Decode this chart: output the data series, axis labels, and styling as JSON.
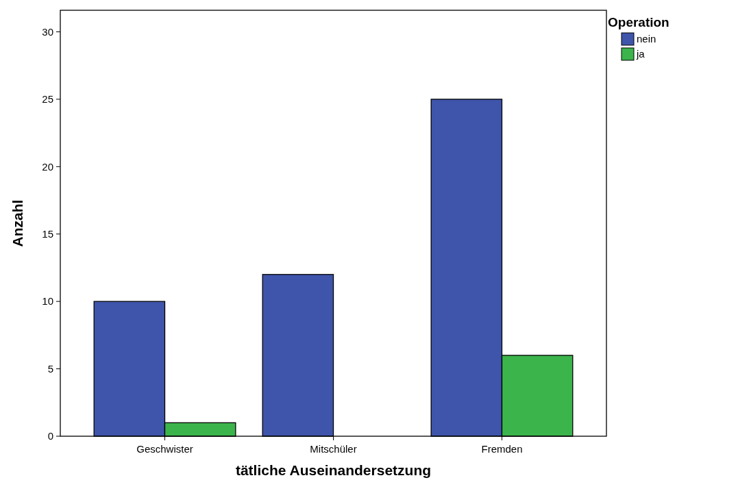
{
  "chart_data": {
    "type": "bar",
    "xlabel": "tätliche Auseinandersetzung",
    "ylabel": "Anzahl",
    "legend_title": "Operation",
    "categories": [
      "Geschwister",
      "Mitschüler",
      "Fremden"
    ],
    "series": [
      {
        "name": "nein",
        "color": "#3f55ab",
        "values": [
          10,
          12,
          25
        ]
      },
      {
        "name": "ja",
        "color": "#3bb44b",
        "values": [
          1,
          null,
          6
        ]
      }
    ],
    "ylim": [
      0,
      31.6
    ],
    "yticks": [
      0,
      5,
      10,
      15,
      20,
      25,
      30
    ],
    "grid": false,
    "legend": "top right"
  }
}
